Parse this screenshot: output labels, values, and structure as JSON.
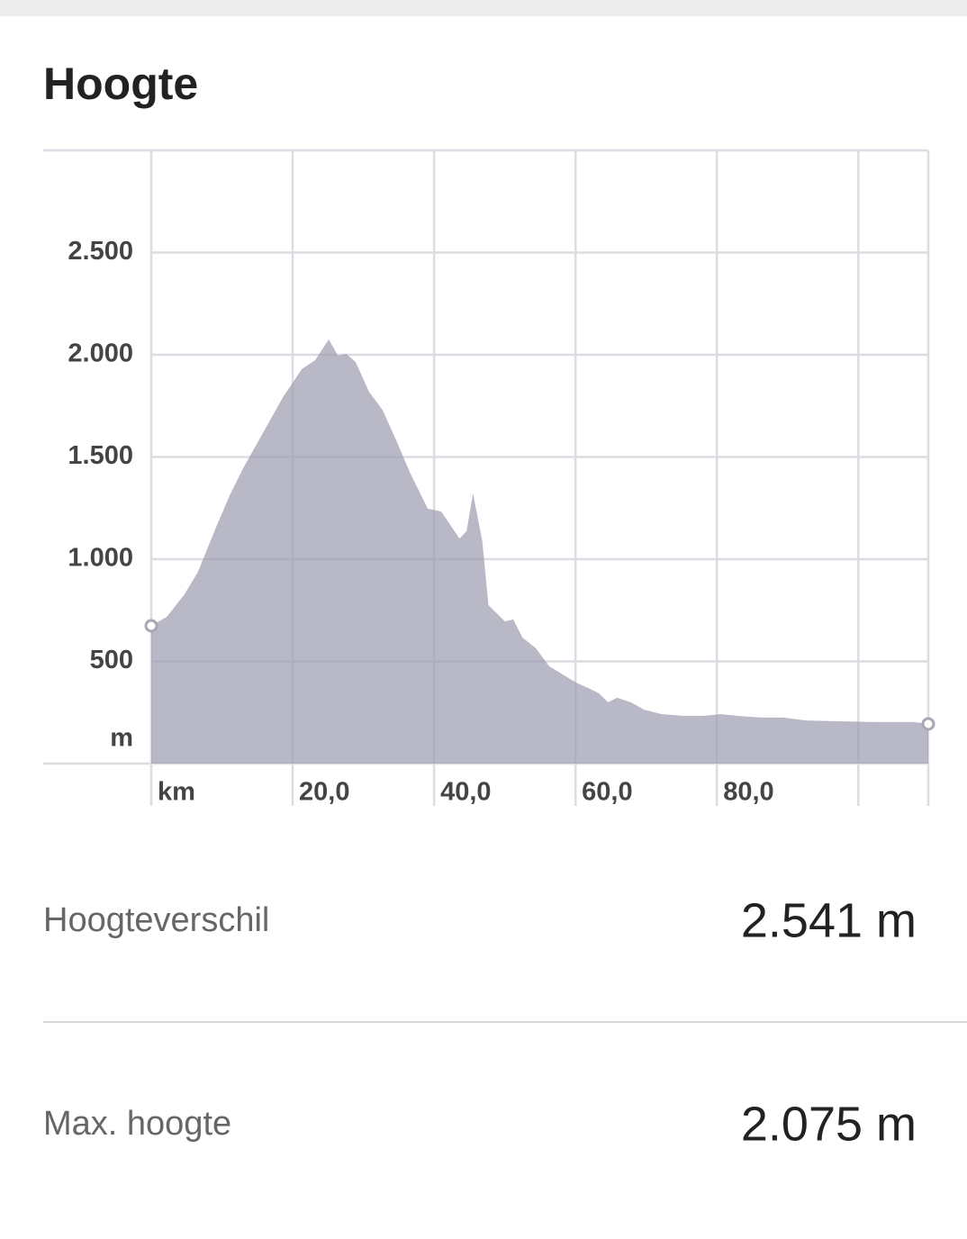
{
  "chart_data": {
    "type": "area",
    "title": "Hoogte",
    "x": [
      0,
      2.2,
      4.7,
      6.6,
      9.2,
      11.1,
      13.0,
      15.5,
      18.7,
      21.3,
      23.2,
      25.1,
      26.4,
      27.6,
      28.9,
      30.8,
      32.7,
      34.7,
      36.6,
      39.1,
      41.0,
      43.6,
      44.6,
      45.5,
      46.8,
      47.7,
      50.0,
      51.2,
      52.5,
      54.4,
      56.3,
      60.1,
      62.0,
      63.3,
      64.6,
      65.9,
      67.8,
      69.7,
      72.2,
      75.4,
      78.0,
      80.5,
      83.1,
      86.2,
      89.4,
      92.6,
      97.1,
      102.2,
      107.9,
      109.9
    ],
    "values": [
      674,
      718,
      828,
      938,
      1159,
      1313,
      1445,
      1599,
      1797,
      1930,
      1974,
      2075,
      1996,
      2004,
      1965,
      1819,
      1731,
      1577,
      1423,
      1247,
      1233,
      1101,
      1137,
      1322,
      1093,
      775,
      696,
      705,
      617,
      564,
      476,
      396,
      366,
      344,
      300,
      322,
      300,
      264,
      242,
      233,
      233,
      242,
      233,
      225,
      225,
      211,
      207,
      203,
      203,
      194
    ],
    "color": "#9a9aae",
    "xlim": [
      0,
      109.9
    ],
    "ylim": [
      0,
      3000
    ],
    "xticks": [
      {
        "value": 0,
        "label": "km"
      },
      {
        "value": 20,
        "label": "20,0"
      },
      {
        "value": 40,
        "label": "40,0"
      },
      {
        "value": 60,
        "label": "60,0"
      },
      {
        "value": 80,
        "label": "80,0"
      },
      {
        "value": 100,
        "label": null
      }
    ],
    "yticks": [
      {
        "value": 0,
        "label": "m"
      },
      500,
      {
        "value": 1000,
        "label": "1.000"
      },
      {
        "value": 1500,
        "label": "1.500"
      },
      {
        "value": 2000,
        "label": "2.000"
      },
      {
        "value": 2500,
        "label": "2.500"
      },
      {
        "value": 3000,
        "label": null
      }
    ],
    "grid": true
  },
  "stats": [
    {
      "label": "Hoogteverschil",
      "value": "2.541 m"
    },
    {
      "label": "Max. hoogte",
      "value": "2.075 m"
    }
  ]
}
